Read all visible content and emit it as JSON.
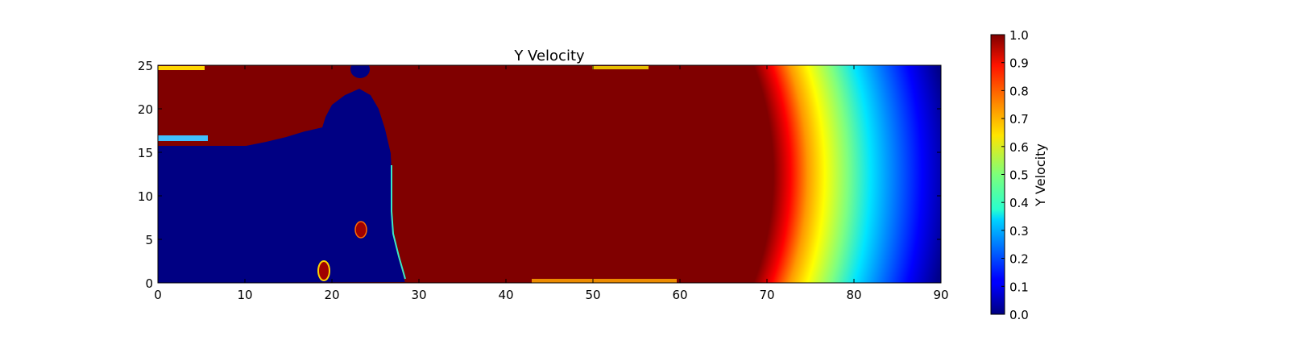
{
  "chart_data": {
    "type": "heatmap",
    "title": "Y Velocity",
    "xlabel": "",
    "ylabel": "",
    "xlim": [
      0,
      90
    ],
    "ylim": [
      0,
      25
    ],
    "x_ticks": [
      "0",
      "10",
      "20",
      "30",
      "40",
      "50",
      "60",
      "70",
      "80",
      "90"
    ],
    "y_ticks": [
      "0",
      "5",
      "10",
      "15",
      "20",
      "25"
    ],
    "colormap": "jet",
    "colorbar": {
      "label": "Y Velocity",
      "range": [
        0.0,
        1.0
      ],
      "ticks": [
        "0.0",
        "0.1",
        "0.2",
        "0.3",
        "0.4",
        "0.5",
        "0.6",
        "0.7",
        "0.8",
        "0.9",
        "1.0"
      ]
    },
    "regions": [
      {
        "region": "upper-left block",
        "x": [
          0,
          20
        ],
        "y": [
          15.5,
          25
        ],
        "value": 1.0
      },
      {
        "region": "lower-left block",
        "x": [
          0,
          27
        ],
        "y": [
          0,
          15.5
        ],
        "value": 0.0
      },
      {
        "region": "central core",
        "x": [
          27,
          72
        ],
        "y": [
          0,
          25
        ],
        "value": 1.0
      },
      {
        "region": "right decay front",
        "x": [
          72,
          90
        ],
        "y": [
          0,
          25
        ],
        "value_range": [
          0.0,
          1.0
        ]
      }
    ],
    "grid": false,
    "legend": "colorbar-right"
  }
}
